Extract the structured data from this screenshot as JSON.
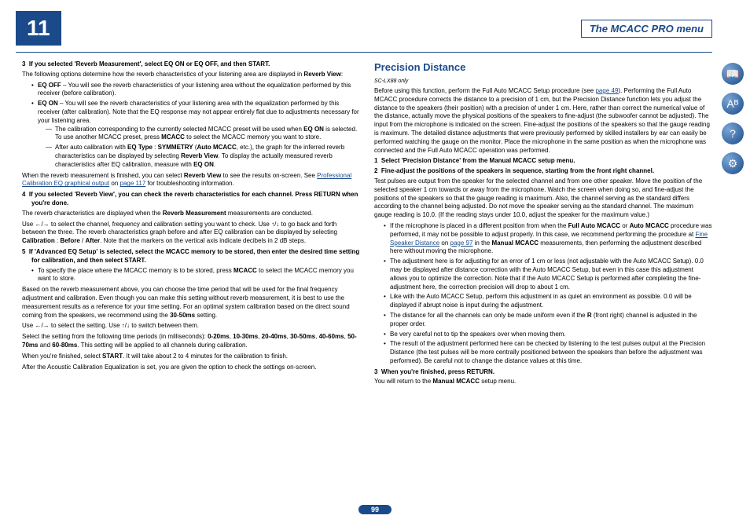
{
  "pageNumber": "11",
  "menuTitle": "The MCACC PRO menu",
  "pageBadge": "99",
  "left": {
    "step3": "If you selected 'Reverb Measurement', select EQ ON or EQ OFF, and then START.",
    "step3intro": "The following options determine how the reverb characteristics of your listening area are displayed in",
    "reverbView": "Reverb View",
    "eqOff": " – You will see the reverb characteristics of your listening area without the equalization performed by this receiver (before calibration).",
    "eqOn": " – You will see the reverb characteristics of your listening area with the equalization performed by this receiver (after calibration). Note that the EQ response may not appear entirely flat due to adjustments necessary for your listening area.",
    "dash1a": "The calibration corresponding to the currently selected MCACC preset will be used when ",
    "dash1b": " is selected. To use another MCACC preset, press ",
    "dash1c": " to select the MCACC memory you want to store.",
    "dash2a": "After auto calibration with ",
    "dash2b": " (",
    "dash2c": ", etc.), the graph for the inferred reverb characteristics can be displayed by selecting ",
    "dash2d": ". To display the actually measured reverb characteristics after EQ calibration, measure with ",
    "finish1": "When the reverb measurement is finished, you can select ",
    "finish2": " to see the results on-screen. See ",
    "linkProf": "Professional Calibration EQ graphical output",
    "linkPage117": "page 117",
    "finish3": " for troubleshooting information.",
    "step4": "If you selected 'Reverb View', you can check the reverb characteristics for each channel. Press RETURN when you're done.",
    "step4body1a": "The reverb characteristics are displayed when the ",
    "step4body1b": " measurements are conducted.",
    "step4body2a": " to select the channel, frequency and calibration setting you want to check. Use ",
    "step4body2b": " to go back and forth between the three. The reverb characteristics graph before and after EQ calibration can be displayed by selecting ",
    "step4body2c": ". Note that the markers on the vertical axis indicate decibels in 2 dB steps.",
    "step5": "If 'Advanced EQ Setup' is selected, select the MCACC memory to be stored, then enter the desired time setting for calibration, and then select START.",
    "step5bullet": "To specify the place where the MCACC memory is to be stored, press ",
    "step5bulletEnd": " to select the MCACC memory you want to store.",
    "step5p1": "Based on the reverb measurement above, you can choose the time period that will be used for the final frequency adjustment and calibration. Even though you can make this setting without reverb measurement, it is best to use the measurement results as a reference for your time setting. For an optimal system calibration based on the direct sound coming from the speakers, we recommend using the ",
    "step5p1end": " setting.",
    "step5p2a": " to select the setting. Use ",
    "step5p2b": " to switch between them.",
    "step5p3a": "Select the setting from the following time periods (in milliseconds): ",
    "step5p3b": ". This setting will be applied to all channels during calibration.",
    "step5p4a": "When you're finished, select ",
    "step5p4b": ". It will take about 2 to 4 minutes for the calibration to finish.",
    "step5p5": "After the Acoustic Calibration Equalization is set, you are given the option to check the settings on-screen."
  },
  "right": {
    "title": "Precision Distance",
    "model": "SC-LX88 only",
    "intro1": "Before using this function, perform the Full Auto MCACC Setup procedure (see ",
    "linkPage49": "page 49",
    "intro2": "). Performing the Full Auto MCACC procedure corrects the distance to a precision of 1 cm, but the Precision Distance function lets you adjust the distance to the speakers (their position) with a precision of under 1 cm. Here, rather than correct the numerical value of the distance, actually move the physical positions of the speakers to fine-adjust (the subwoofer cannot be adjusted). The input from the microphone is indicated on the screen. Fine-adjust the positions of the speakers so that the gauge reading is maximum. The detailed distance adjustments that were previously performed by skilled installers by ear can easily be performed watching the gauge on the monitor. Place the microphone in the same position as when the microphone was connected and the Full Auto MCACC operation was performed.",
    "step1": "Select 'Precision Distance' from the Manual MCACC setup menu.",
    "step2": "Fine-adjust the positions of the speakers in sequence, starting from the front right channel.",
    "step2body": "Test pulses are output from the speaker for the selected channel and from one other speaker. Move the position of the selected speaker 1 cm towards or away from the microphone. Watch the screen when doing so, and fine-adjust the positions of the speakers so that the gauge reading is maximum. Also, the channel serving as the standard differs according to the channel being adjusted. Do not move the speaker serving as the standard channel. The maximum gauge reading is 10.0. (If the reading stays under 10.0, adjust the speaker for the maximum value.)",
    "b1a": "If the microphone is placed in a different position from when the ",
    "b1b": " or ",
    "b1c": " procedure was performed, it may not be possible to adjust properly. In this case, we recommend performing the procedure at ",
    "linkFine": "Fine Speaker Distance",
    "linkPage97": "page 97",
    "b1d": " in the ",
    "b1e": " measurements, then performing the adjustment described here without moving the microphone.",
    "b2": "The adjustment here is for adjusting for an error of 1 cm or less (not adjustable with the Auto MCACC Setup). 0.0 may be displayed after distance correction with the Auto MCACC Setup, but even in this case this adjustment allows you to optimize the correction. Note that if the Auto MCACC Setup is performed after completing the fine-adjustment here, the correction precision will drop to about 1 cm.",
    "b3": "Like with the Auto MCACC Setup, perform this adjustment in as quiet an environment as possible. 0.0 will be displayed if abrupt noise is input during the adjustment.",
    "b4a": "The distance for all the channels can only be made uniform even if the ",
    "b4b": " (front right) channel is adjusted in the proper order.",
    "b5": "Be very careful not to tip the speakers over when moving them.",
    "b6": "The result of the adjustment performed here can be checked by listening to the test pulses output at the Precision Distance (the test pulses will be more centrally positioned between the speakers than before the adjustment was performed). Be careful not to change the distance values at this time.",
    "step3": "When you're finished, press RETURN.",
    "step3body1": "You will return to the ",
    "step3body2": " setup menu."
  }
}
